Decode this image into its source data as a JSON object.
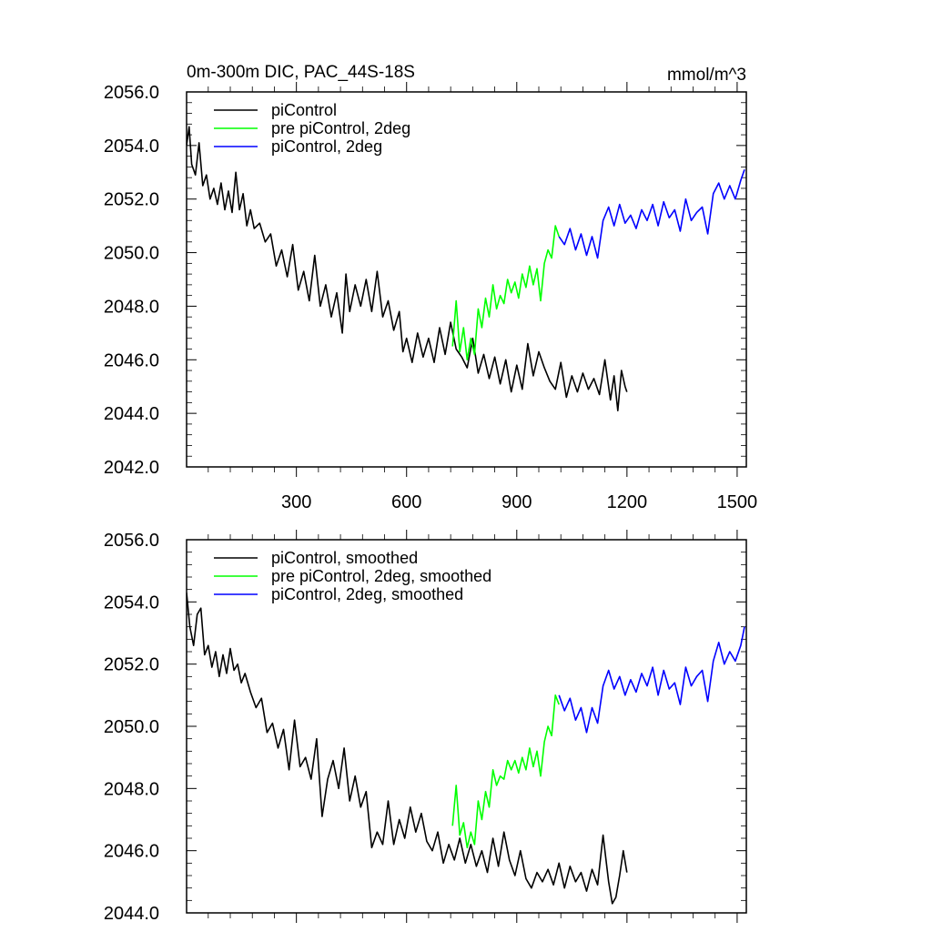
{
  "chart_data": [
    {
      "type": "line",
      "title": "0m-300m DIC, PAC_44S-18S",
      "units": "mmol/m^3",
      "xlim": [
        1,
        1525
      ],
      "ylim": [
        2042,
        2056
      ],
      "xticks": [
        300,
        600,
        900,
        1200,
        1500
      ],
      "xtick_labels": [
        "300",
        "600",
        "900",
        "1200",
        "1500"
      ],
      "yticks": [
        2042,
        2044,
        2046,
        2048,
        2050,
        2052,
        2054,
        2056
      ],
      "ytick_labels": [
        "2042.0",
        "2044.0",
        "2046.0",
        "2048.0",
        "2050.0",
        "2052.0",
        "2054.0",
        "2056.0"
      ],
      "legend_position": "top-left",
      "series": [
        {
          "name": "piControl",
          "color": "#000000",
          "x": [
            1,
            8,
            15,
            25,
            35,
            45,
            55,
            65,
            75,
            85,
            95,
            105,
            115,
            125,
            135,
            145,
            155,
            165,
            175,
            185,
            200,
            215,
            230,
            245,
            260,
            275,
            290,
            305,
            320,
            335,
            350,
            365,
            380,
            395,
            410,
            425,
            435,
            445,
            460,
            475,
            490,
            505,
            520,
            535,
            550,
            565,
            580,
            590,
            600,
            615,
            630,
            645,
            660,
            675,
            690,
            705,
            720,
            735,
            750,
            765,
            780,
            795,
            810,
            825,
            840,
            855,
            870,
            885,
            900,
            915,
            930,
            945,
            960,
            975,
            990,
            1005,
            1020,
            1035,
            1050,
            1065,
            1080,
            1095,
            1110,
            1125,
            1140,
            1155,
            1165,
            1175,
            1185,
            1195,
            1200
          ],
          "values": [
            2054.0,
            2054.7,
            2053.3,
            2052.9,
            2054.1,
            2052.5,
            2052.9,
            2052.0,
            2052.4,
            2051.8,
            2052.6,
            2051.6,
            2052.3,
            2051.5,
            2053.0,
            2051.6,
            2052.2,
            2051.0,
            2051.6,
            2050.9,
            2051.1,
            2050.4,
            2050.7,
            2049.5,
            2050.1,
            2049.1,
            2050.3,
            2048.6,
            2049.3,
            2048.2,
            2049.9,
            2048.0,
            2048.8,
            2047.6,
            2048.5,
            2047.0,
            2049.2,
            2047.8,
            2048.8,
            2048.0,
            2049.0,
            2047.8,
            2049.3,
            2047.6,
            2048.2,
            2047.1,
            2047.8,
            2046.3,
            2046.8,
            2045.9,
            2047.0,
            2046.1,
            2046.8,
            2045.9,
            2047.2,
            2046.2,
            2047.4,
            2046.4,
            2046.1,
            2045.7,
            2046.8,
            2045.5,
            2046.2,
            2045.3,
            2046.1,
            2045.1,
            2046.0,
            2044.8,
            2045.8,
            2044.9,
            2046.6,
            2045.4,
            2046.3,
            2045.7,
            2045.2,
            2044.9,
            2045.9,
            2044.6,
            2045.4,
            2044.8,
            2045.5,
            2044.9,
            2045.3,
            2044.7,
            2046.0,
            2044.5,
            2045.4,
            2044.1,
            2045.6,
            2045.0,
            2044.8
          ]
        },
        {
          "name": "pre piControl, 2deg",
          "color": "#00ff00",
          "x": [
            725,
            735,
            745,
            755,
            765,
            775,
            785,
            795,
            805,
            815,
            825,
            835,
            845,
            855,
            865,
            875,
            885,
            895,
            905,
            915,
            925,
            935,
            945,
            955,
            965,
            975,
            985,
            995,
            1005,
            1015
          ],
          "values": [
            2046.5,
            2048.2,
            2046.3,
            2047.2,
            2046.0,
            2046.8,
            2046.2,
            2047.9,
            2047.2,
            2048.3,
            2047.6,
            2048.8,
            2047.9,
            2048.4,
            2048.1,
            2049.0,
            2048.5,
            2048.9,
            2048.3,
            2049.2,
            2048.7,
            2049.5,
            2048.8,
            2049.4,
            2048.2,
            2049.6,
            2050.1,
            2049.8,
            2051.0,
            2050.6
          ]
        },
        {
          "name": "piControl, 2deg",
          "color": "#0000ff",
          "x": [
            1015,
            1030,
            1045,
            1060,
            1075,
            1090,
            1105,
            1120,
            1135,
            1150,
            1165,
            1180,
            1195,
            1210,
            1225,
            1240,
            1255,
            1270,
            1285,
            1300,
            1315,
            1330,
            1345,
            1360,
            1375,
            1390,
            1405,
            1420,
            1435,
            1450,
            1465,
            1480,
            1495,
            1510,
            1520
          ],
          "values": [
            2050.6,
            2050.3,
            2050.9,
            2050.1,
            2050.7,
            2049.9,
            2050.6,
            2049.8,
            2051.2,
            2051.7,
            2051.0,
            2051.8,
            2051.1,
            2051.4,
            2050.9,
            2051.6,
            2051.2,
            2051.8,
            2051.0,
            2051.9,
            2051.3,
            2051.6,
            2050.8,
            2052.0,
            2051.2,
            2051.5,
            2051.7,
            2050.7,
            2052.2,
            2052.6,
            2052.0,
            2052.5,
            2052.0,
            2052.7,
            2053.1
          ]
        }
      ]
    },
    {
      "type": "line",
      "title": "",
      "xlim": [
        1,
        1525
      ],
      "ylim": [
        2044,
        2056
      ],
      "xticks": [
        300,
        600,
        900,
        1200,
        1500
      ],
      "xtick_labels": [],
      "yticks": [
        2044,
        2046,
        2048,
        2050,
        2052,
        2054,
        2056
      ],
      "ytick_labels": [
        "2044.0",
        "2046.0",
        "2048.0",
        "2050.0",
        "2052.0",
        "2054.0",
        "2056.0"
      ],
      "legend_position": "top-left",
      "series": [
        {
          "name": "piControl, smoothed",
          "color": "#000000",
          "x": [
            1,
            10,
            20,
            30,
            40,
            50,
            60,
            70,
            80,
            90,
            100,
            110,
            120,
            130,
            140,
            150,
            160,
            175,
            190,
            205,
            220,
            235,
            250,
            265,
            280,
            295,
            310,
            325,
            340,
            355,
            370,
            385,
            400,
            415,
            430,
            445,
            460,
            475,
            490,
            505,
            520,
            535,
            550,
            565,
            580,
            595,
            610,
            625,
            640,
            655,
            670,
            685,
            700,
            715,
            730,
            745,
            760,
            775,
            790,
            805,
            820,
            835,
            850,
            865,
            880,
            895,
            910,
            925,
            940,
            955,
            970,
            985,
            1000,
            1015,
            1030,
            1045,
            1060,
            1075,
            1090,
            1105,
            1120,
            1135,
            1150,
            1160,
            1170,
            1180,
            1190,
            1200
          ],
          "values": [
            2054.3,
            2053.2,
            2052.6,
            2053.6,
            2053.8,
            2052.3,
            2052.6,
            2051.9,
            2052.4,
            2051.6,
            2052.3,
            2051.7,
            2052.5,
            2051.8,
            2052.0,
            2051.4,
            2051.7,
            2051.1,
            2050.6,
            2050.9,
            2049.8,
            2050.1,
            2049.3,
            2049.9,
            2048.6,
            2050.2,
            2048.7,
            2049.0,
            2048.3,
            2049.6,
            2047.1,
            2048.3,
            2048.9,
            2048.0,
            2049.3,
            2047.6,
            2048.4,
            2047.4,
            2047.9,
            2046.1,
            2046.6,
            2046.2,
            2047.6,
            2046.2,
            2047.0,
            2046.4,
            2047.4,
            2046.6,
            2047.2,
            2046.3,
            2046.0,
            2046.6,
            2045.6,
            2046.2,
            2045.7,
            2046.4,
            2045.6,
            2046.2,
            2045.5,
            2046.0,
            2045.3,
            2046.4,
            2045.5,
            2046.6,
            2045.7,
            2045.2,
            2046.0,
            2045.1,
            2044.8,
            2045.3,
            2045.0,
            2045.4,
            2044.9,
            2045.6,
            2044.8,
            2045.5,
            2045.0,
            2045.3,
            2044.7,
            2045.4,
            2044.9,
            2046.5,
            2045.0,
            2044.3,
            2044.5,
            2045.2,
            2046.0,
            2045.3
          ]
        },
        {
          "name": "pre piControl, 2deg, smoothed",
          "color": "#00ff00",
          "x": [
            725,
            735,
            745,
            755,
            765,
            775,
            785,
            795,
            805,
            815,
            825,
            835,
            845,
            855,
            865,
            875,
            885,
            895,
            905,
            915,
            925,
            935,
            945,
            955,
            965,
            975,
            985,
            995,
            1005,
            1015
          ],
          "values": [
            2046.8,
            2048.1,
            2046.5,
            2046.9,
            2046.1,
            2046.6,
            2046.2,
            2047.6,
            2047.0,
            2047.9,
            2047.4,
            2048.6,
            2048.1,
            2048.4,
            2048.3,
            2048.9,
            2048.6,
            2048.9,
            2048.5,
            2049.0,
            2048.6,
            2049.3,
            2048.7,
            2049.2,
            2048.4,
            2049.5,
            2050.0,
            2049.7,
            2051.0,
            2050.7
          ]
        },
        {
          "name": "piControl, 2deg, smoothed",
          "color": "#0000ff",
          "x": [
            1015,
            1030,
            1045,
            1060,
            1075,
            1090,
            1105,
            1120,
            1135,
            1150,
            1165,
            1180,
            1195,
            1210,
            1225,
            1240,
            1255,
            1270,
            1285,
            1300,
            1315,
            1330,
            1345,
            1360,
            1375,
            1390,
            1405,
            1420,
            1435,
            1450,
            1465,
            1480,
            1495,
            1510,
            1520
          ],
          "values": [
            2051.0,
            2050.5,
            2050.9,
            2050.2,
            2050.6,
            2049.8,
            2050.6,
            2050.1,
            2051.3,
            2051.8,
            2051.2,
            2051.6,
            2051.0,
            2051.5,
            2051.1,
            2051.7,
            2051.3,
            2051.9,
            2051.0,
            2051.8,
            2051.2,
            2051.4,
            2050.7,
            2051.9,
            2051.3,
            2051.6,
            2051.8,
            2050.8,
            2052.1,
            2052.7,
            2052.0,
            2052.4,
            2052.1,
            2052.6,
            2053.2
          ]
        }
      ]
    }
  ]
}
